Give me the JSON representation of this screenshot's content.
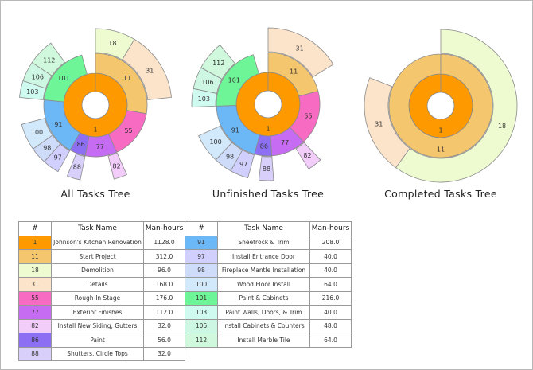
{
  "colors": {
    "1": "#ff9900",
    "11": "#f4c76e",
    "18": "#eefbd0",
    "31": "#fce4cb",
    "55": "#f76bc2",
    "77": "#c56cf3",
    "82": "#f2cdf9",
    "86": "#8c6ff2",
    "88": "#d8cffa",
    "91": "#6cb7f6",
    "97": "#d0cffd",
    "98": "#cedcfa",
    "100": "#d2e8fb",
    "101": "#6ef597",
    "103": "#cffaf0",
    "106": "#cdf7e3",
    "112": "#cff8dc"
  },
  "chart_data": [
    {
      "type": "sunburst",
      "title": "All Tasks Tree",
      "scale_hours": 1128,
      "nodes": [
        {
          "id": "1",
          "level": 1,
          "hours": 1128
        },
        {
          "id": "11",
          "parent": "1",
          "level": 2,
          "hours": 312
        },
        {
          "id": "18",
          "parent": "11",
          "level": 3,
          "hours": 96
        },
        {
          "id": "31",
          "parent": "11",
          "level": 3,
          "hours": 168
        },
        {
          "id": "55",
          "parent": "1",
          "level": 2,
          "hours": 176
        },
        {
          "id": "77",
          "parent": "1",
          "level": 2,
          "hours": 112
        },
        {
          "id": "82",
          "parent": "77",
          "level": 3,
          "hours": 32
        },
        {
          "id": "86",
          "parent": "1",
          "level": 2,
          "hours": 56
        },
        {
          "id": "88",
          "parent": "86",
          "level": 3,
          "hours": 32
        },
        {
          "id": "91",
          "parent": "1",
          "level": 2,
          "hours": 208
        },
        {
          "id": "97",
          "parent": "91",
          "level": 3,
          "hours": 40
        },
        {
          "id": "98",
          "parent": "91",
          "level": 3,
          "hours": 40
        },
        {
          "id": "100",
          "parent": "91",
          "level": 3,
          "hours": 64
        },
        {
          "id": "101",
          "parent": "1",
          "level": 2,
          "hours": 216
        },
        {
          "id": "103",
          "parent": "101",
          "level": 3,
          "hours": 40
        },
        {
          "id": "106",
          "parent": "101",
          "level": 3,
          "hours": 48
        },
        {
          "id": "112",
          "parent": "101",
          "level": 3,
          "hours": 64
        }
      ]
    },
    {
      "type": "sunburst",
      "title": "Unfinished Tasks Tree",
      "scale_hours": 1032,
      "nodes": [
        {
          "id": "1",
          "level": 1,
          "hours": 1032
        },
        {
          "id": "11",
          "parent": "1",
          "level": 2,
          "hours": 216
        },
        {
          "id": "31",
          "parent": "11",
          "level": 3,
          "hours": 168
        },
        {
          "id": "55",
          "parent": "1",
          "level": 2,
          "hours": 176
        },
        {
          "id": "77",
          "parent": "1",
          "level": 2,
          "hours": 112
        },
        {
          "id": "82",
          "parent": "77",
          "level": 3,
          "hours": 32
        },
        {
          "id": "86",
          "parent": "1",
          "level": 2,
          "hours": 56
        },
        {
          "id": "88",
          "parent": "86",
          "level": 3,
          "hours": 32
        },
        {
          "id": "91",
          "parent": "1",
          "level": 2,
          "hours": 208
        },
        {
          "id": "97",
          "parent": "91",
          "level": 3,
          "hours": 40
        },
        {
          "id": "98",
          "parent": "91",
          "level": 3,
          "hours": 40
        },
        {
          "id": "100",
          "parent": "91",
          "level": 3,
          "hours": 64
        },
        {
          "id": "101",
          "parent": "1",
          "level": 2,
          "hours": 216
        },
        {
          "id": "103",
          "parent": "101",
          "level": 3,
          "hours": 40
        },
        {
          "id": "106",
          "parent": "101",
          "level": 3,
          "hours": 48
        },
        {
          "id": "112",
          "parent": "101",
          "level": 3,
          "hours": 64
        }
      ]
    },
    {
      "type": "sunburst",
      "title": "Completed Tasks Tree",
      "nodes": [
        {
          "id": "1",
          "level": 1,
          "share": 1
        },
        {
          "id": "11",
          "parent": "1",
          "level": 2,
          "share": 1
        },
        {
          "id": "18",
          "parent": "11",
          "level": 3,
          "share": 0.6
        },
        {
          "id": "31",
          "parent": "11",
          "level": 3,
          "share": 0.21
        }
      ]
    }
  ],
  "table": {
    "headers": [
      "#",
      "Task Name",
      "Man-hours"
    ],
    "left": [
      [
        "1",
        "Johnson's Kitchen Renovation",
        "1128.0"
      ],
      [
        "11",
        "Start Project",
        "312.0"
      ],
      [
        "18",
        "Demolition",
        "96.0"
      ],
      [
        "31",
        "Details",
        "168.0"
      ],
      [
        "55",
        "Rough-In Stage",
        "176.0"
      ],
      [
        "77",
        "Exterior Finishes",
        "112.0"
      ],
      [
        "82",
        "Install New Siding, Gutters",
        "32.0"
      ],
      [
        "86",
        "Paint",
        "56.0"
      ],
      [
        "88",
        "Shutters, Circle Tops",
        "32.0"
      ]
    ],
    "right": [
      [
        "91",
        "Sheetrock & Trim",
        "208.0"
      ],
      [
        "97",
        "Install Entrance Door",
        "40.0"
      ],
      [
        "98",
        "Fireplace Mantle Installation",
        "40.0"
      ],
      [
        "100",
        "Wood Floor Install",
        "64.0"
      ],
      [
        "101",
        "Paint & Cabinets",
        "216.0"
      ],
      [
        "103",
        "Paint Walls, Doors, & Trim",
        "40.0"
      ],
      [
        "106",
        "Install Cabinets & Counters",
        "48.0"
      ],
      [
        "112",
        "Install Marble Tile",
        "64.0"
      ]
    ]
  }
}
